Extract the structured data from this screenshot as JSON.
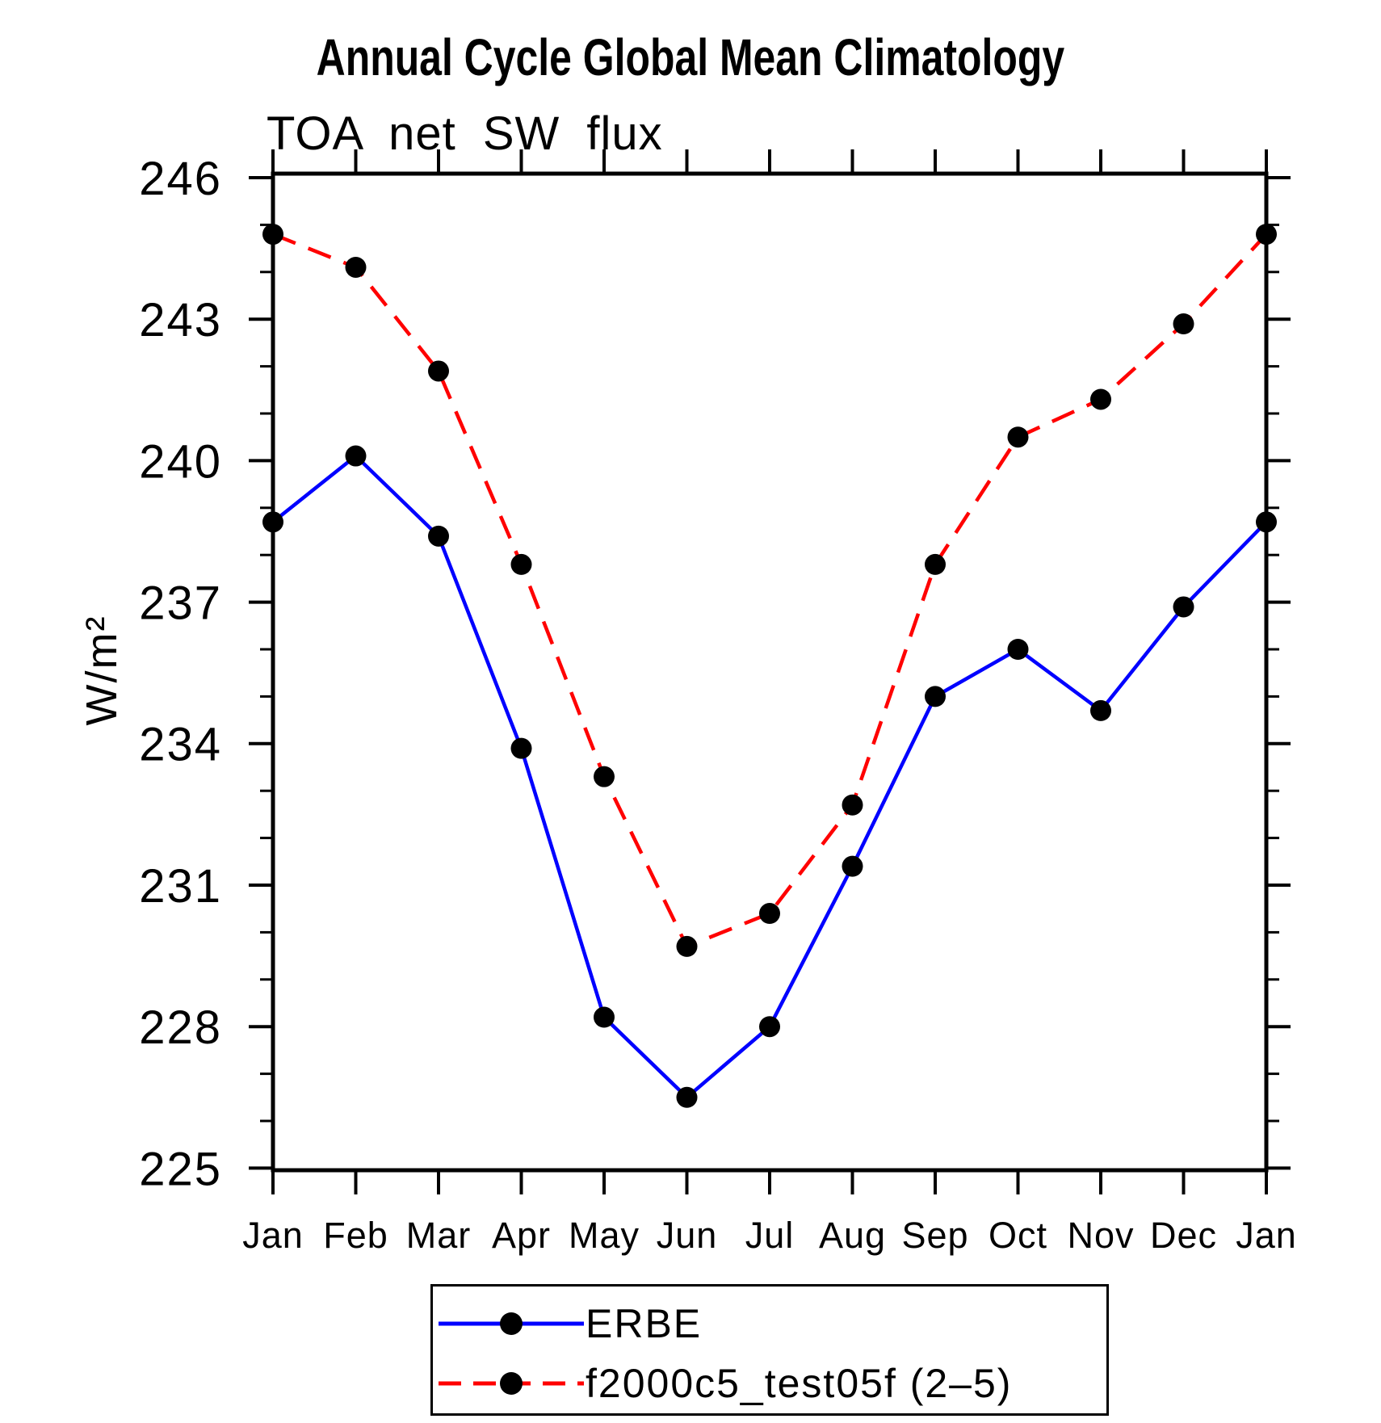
{
  "chart_data": {
    "type": "line",
    "title": "Annual Cycle Global Mean Climatology",
    "subtitle": "TOA net SW flux",
    "ylabel": "W/m²",
    "xlabel": "",
    "categories": [
      "Jan",
      "Feb",
      "Mar",
      "Apr",
      "May",
      "Jun",
      "Jul",
      "Aug",
      "Sep",
      "Oct",
      "Nov",
      "Dec",
      "Jan"
    ],
    "series": [
      {
        "name": "ERBE",
        "color": "#0000ff",
        "line_style": "solid",
        "marker": "filled-circle",
        "marker_color": "#000000",
        "values": [
          238.7,
          240.1,
          238.4,
          233.9,
          228.2,
          226.5,
          228.0,
          231.4,
          235.0,
          236.0,
          234.7,
          236.9,
          238.7
        ]
      },
      {
        "name": "f2000c5_test05f (2–5)",
        "color": "#ff0000",
        "line_style": "dashed",
        "marker": "filled-circle",
        "marker_color": "#000000",
        "values": [
          244.8,
          244.1,
          241.9,
          237.8,
          233.3,
          229.7,
          230.4,
          232.7,
          237.8,
          240.5,
          241.3,
          242.9,
          244.8
        ]
      }
    ],
    "ylim": [
      225,
      246
    ],
    "yticks": [
      225,
      228,
      231,
      234,
      237,
      240,
      243,
      246
    ],
    "minor_tick_step": 1,
    "grid": false,
    "frame_color": "#000000",
    "legend_position": "bottom-center"
  }
}
